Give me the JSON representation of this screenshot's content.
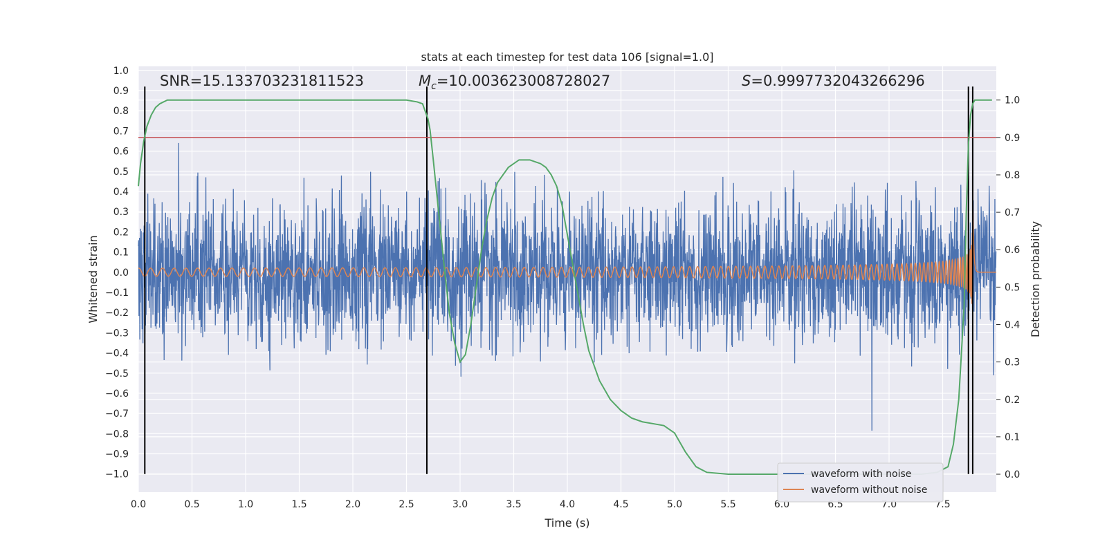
{
  "chart_data": {
    "type": "line",
    "title": "stats at each timestep for test data 106 [signal=1.0]",
    "xlabel": "Time (s)",
    "ylabel": "Whitened strain",
    "y2label": "Detection probability",
    "xlim": [
      0.0,
      8.0
    ],
    "ylim": [
      -1.09,
      1.02
    ],
    "y2lim": [
      -0.048,
      1.09
    ],
    "x_ticks": [
      "0.0",
      "0.5",
      "1.0",
      "1.5",
      "2.0",
      "2.5",
      "3.0",
      "3.5",
      "4.0",
      "4.5",
      "5.0",
      "5.5",
      "6.0",
      "6.5",
      "7.0",
      "7.5"
    ],
    "y_ticks": [
      "1.0",
      "0.9",
      "0.8",
      "0.7",
      "0.6",
      "0.5",
      "0.4",
      "0.3",
      "0.2",
      "0.1",
      "0.0",
      "−0.1",
      "−0.2",
      "−0.3",
      "−0.4",
      "−0.5",
      "−0.6",
      "−0.7",
      "−0.8",
      "−0.9",
      "−1.0"
    ],
    "y2_ticks": [
      "1.0",
      "0.9",
      "0.8",
      "0.7",
      "0.6",
      "0.5",
      "0.4",
      "0.3",
      "0.2",
      "0.1",
      "0.0"
    ],
    "grid": true,
    "legend_position": "bottom-right",
    "annotations": {
      "snr": "SNR=15.133703231811523",
      "mc_symbol": "M",
      "mc_sub": "c",
      "mc_value": "=10.003623008728027",
      "s_symbol": "S",
      "s_value": "=0.9997732043266296"
    },
    "series": [
      {
        "name": "waveform with noise",
        "color": "#4c72b0",
        "envelope_typical": 0.35,
        "peak_max": 0.9
      },
      {
        "name": "waveform without noise",
        "color": "#dd8452",
        "amplitude_start": 0.02,
        "amplitude_peak": 0.45,
        "merger_time": 7.78
      },
      {
        "color": "#55a868",
        "axis": "right",
        "x": [
          0.0,
          0.02,
          0.05,
          0.08,
          0.12,
          0.16,
          0.2,
          0.27,
          0.35,
          0.45,
          0.6,
          0.8,
          1.0,
          1.5,
          2.0,
          2.3,
          2.5,
          2.6,
          2.65,
          2.7,
          2.72,
          2.75,
          2.8,
          2.85,
          2.9,
          2.95,
          3.0,
          3.05,
          3.1,
          3.15,
          3.2,
          3.25,
          3.3,
          3.35,
          3.4,
          3.45,
          3.5,
          3.55,
          3.6,
          3.65,
          3.7,
          3.75,
          3.8,
          3.85,
          3.9,
          3.95,
          4.0,
          4.05,
          4.1,
          4.15,
          4.2,
          4.3,
          4.4,
          4.5,
          4.6,
          4.7,
          4.8,
          4.9,
          5.0,
          5.1,
          5.2,
          5.3,
          5.5,
          6.0,
          6.5,
          7.0,
          7.3,
          7.45,
          7.55,
          7.6,
          7.65,
          7.7,
          7.72,
          7.74,
          7.76,
          7.78,
          7.8,
          7.84,
          7.9,
          7.96
        ],
        "values": [
          0.77,
          0.83,
          0.89,
          0.93,
          0.96,
          0.98,
          0.99,
          1.0,
          1.0,
          1.0,
          1.0,
          1.0,
          1.0,
          1.0,
          1.0,
          1.0,
          1.0,
          0.995,
          0.99,
          0.95,
          0.92,
          0.84,
          0.7,
          0.56,
          0.43,
          0.35,
          0.3,
          0.32,
          0.4,
          0.5,
          0.6,
          0.68,
          0.74,
          0.78,
          0.8,
          0.82,
          0.83,
          0.84,
          0.84,
          0.84,
          0.835,
          0.83,
          0.82,
          0.8,
          0.77,
          0.72,
          0.64,
          0.56,
          0.48,
          0.4,
          0.33,
          0.25,
          0.2,
          0.17,
          0.15,
          0.14,
          0.135,
          0.13,
          0.11,
          0.06,
          0.02,
          0.005,
          0.0,
          0.0,
          0.0,
          0.0,
          0.0,
          0.005,
          0.02,
          0.08,
          0.2,
          0.45,
          0.7,
          0.88,
          0.96,
          0.99,
          1.0,
          1.0,
          1.0,
          1.0
        ]
      }
    ],
    "threshold": {
      "axis": "right",
      "value": 0.9,
      "color": "#c44e52"
    },
    "markers": {
      "color": "#000000",
      "x": [
        0.06,
        2.69,
        7.74,
        7.78
      ],
      "y_range": [
        -1.0,
        0.92
      ]
    }
  }
}
